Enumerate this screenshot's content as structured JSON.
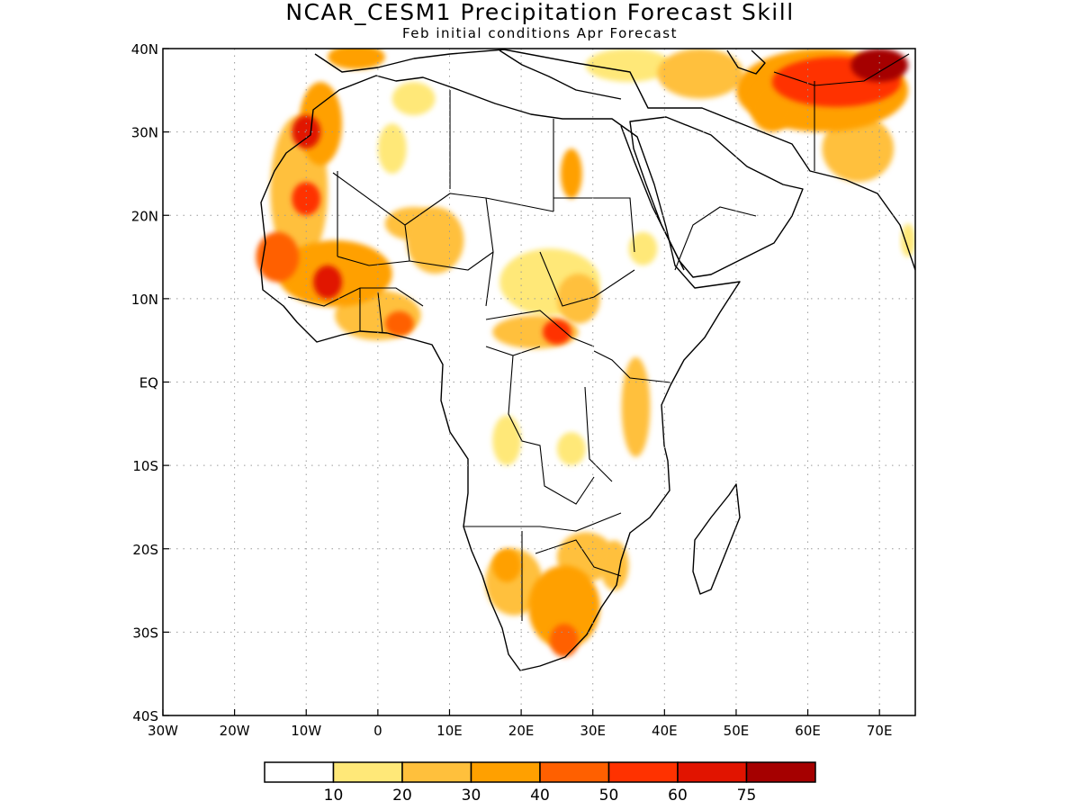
{
  "title": "NCAR_CESM1 Precipitation Forecast Skill",
  "subtitle": "Feb initial conditions  Apr Forecast",
  "map": {
    "lon_range": [
      -30,
      75
    ],
    "lat_range": [
      -40,
      40
    ],
    "lon_ticks": [
      {
        "value": -30,
        "label": "30W"
      },
      {
        "value": -20,
        "label": "20W"
      },
      {
        "value": -10,
        "label": "10W"
      },
      {
        "value": 0,
        "label": "0"
      },
      {
        "value": 10,
        "label": "10E"
      },
      {
        "value": 20,
        "label": "20E"
      },
      {
        "value": 30,
        "label": "30E"
      },
      {
        "value": 40,
        "label": "40E"
      },
      {
        "value": 50,
        "label": "50E"
      },
      {
        "value": 60,
        "label": "60E"
      },
      {
        "value": 70,
        "label": "70E"
      }
    ],
    "lat_ticks": [
      {
        "value": 40,
        "label": "40N"
      },
      {
        "value": 30,
        "label": "30N"
      },
      {
        "value": 20,
        "label": "20N"
      },
      {
        "value": 10,
        "label": "10N"
      },
      {
        "value": 0,
        "label": "EQ"
      },
      {
        "value": -10,
        "label": "10S"
      },
      {
        "value": -20,
        "label": "20S"
      },
      {
        "value": -30,
        "label": "30S"
      },
      {
        "value": -40,
        "label": "40S"
      }
    ],
    "grid": true,
    "skill_regions": [
      {
        "lon": -11,
        "lat": 23,
        "rx": 4,
        "ry": 9,
        "level": 2
      },
      {
        "lon": -8,
        "lat": 31,
        "rx": 3,
        "ry": 5,
        "level": 3
      },
      {
        "lon": -10,
        "lat": 22,
        "rx": 2,
        "ry": 2,
        "level": 5
      },
      {
        "lon": -10,
        "lat": 30,
        "rx": 2,
        "ry": 2,
        "level": 6
      },
      {
        "lon": -6,
        "lat": 13,
        "rx": 8,
        "ry": 4,
        "level": 3
      },
      {
        "lon": -7,
        "lat": 12,
        "rx": 2,
        "ry": 2,
        "level": 6
      },
      {
        "lon": -14,
        "lat": 15,
        "rx": 3,
        "ry": 3,
        "level": 4
      },
      {
        "lon": 0,
        "lat": 8,
        "rx": 6,
        "ry": 3,
        "level": 2
      },
      {
        "lon": 3,
        "lat": 7,
        "rx": 2,
        "ry": 1.5,
        "level": 4
      },
      {
        "lon": 5,
        "lat": 19,
        "rx": 4,
        "ry": 2,
        "level": 2
      },
      {
        "lon": 8,
        "lat": 17,
        "rx": 4,
        "ry": 4,
        "level": 2
      },
      {
        "lon": 2,
        "lat": 28,
        "rx": 2,
        "ry": 3,
        "level": 1
      },
      {
        "lon": 5,
        "lat": 34,
        "rx": 3,
        "ry": 2,
        "level": 1
      },
      {
        "lon": -3,
        "lat": 39,
        "rx": 4,
        "ry": 1.5,
        "level": 3
      },
      {
        "lon": 27,
        "lat": 25,
        "rx": 1.5,
        "ry": 3,
        "level": 3
      },
      {
        "lon": 24,
        "lat": 12,
        "rx": 7,
        "ry": 4,
        "level": 1
      },
      {
        "lon": 28,
        "lat": 10,
        "rx": 3,
        "ry": 3,
        "level": 2
      },
      {
        "lon": 22,
        "lat": 6,
        "rx": 6,
        "ry": 2,
        "level": 2
      },
      {
        "lon": 25,
        "lat": 6,
        "rx": 2,
        "ry": 1.5,
        "level": 5
      },
      {
        "lon": 37,
        "lat": 16,
        "rx": 2,
        "ry": 2,
        "level": 1
      },
      {
        "lon": 36,
        "lat": -3,
        "rx": 2,
        "ry": 6,
        "level": 2
      },
      {
        "lon": 18,
        "lat": -7,
        "rx": 2,
        "ry": 3,
        "level": 1
      },
      {
        "lon": 27,
        "lat": -8,
        "rx": 2,
        "ry": 2,
        "level": 1
      },
      {
        "lon": 19,
        "lat": -24,
        "rx": 4,
        "ry": 4,
        "level": 2
      },
      {
        "lon": 26,
        "lat": -27,
        "rx": 5,
        "ry": 5,
        "level": 3
      },
      {
        "lon": 26,
        "lat": -31,
        "rx": 2,
        "ry": 2,
        "level": 4
      },
      {
        "lon": 29,
        "lat": -21,
        "rx": 4,
        "ry": 3,
        "level": 2
      },
      {
        "lon": 33,
        "lat": -22,
        "rx": 2,
        "ry": 3,
        "level": 2
      },
      {
        "lon": 18,
        "lat": -22,
        "rx": 2,
        "ry": 2,
        "level": 3
      },
      {
        "lon": 62,
        "lat": 35,
        "rx": 12,
        "ry": 5,
        "level": 3
      },
      {
        "lon": 64,
        "lat": 36,
        "rx": 9,
        "ry": 3,
        "level": 5
      },
      {
        "lon": 70,
        "lat": 38,
        "rx": 4,
        "ry": 2,
        "level": 7
      },
      {
        "lon": 45,
        "lat": 37,
        "rx": 6,
        "ry": 3,
        "level": 2
      },
      {
        "lon": 55,
        "lat": 33,
        "rx": 3,
        "ry": 3,
        "level": 3
      },
      {
        "lon": 67,
        "lat": 28,
        "rx": 5,
        "ry": 4,
        "level": 2
      },
      {
        "lon": 74,
        "lat": 17,
        "rx": 1,
        "ry": 2,
        "level": 1
      },
      {
        "lon": 35,
        "lat": 38,
        "rx": 6,
        "ry": 2,
        "level": 1
      }
    ]
  },
  "colorbar": {
    "colors": [
      "#ffffff",
      "#ffe878",
      "#ffc03c",
      "#ffa000",
      "#ff6000",
      "#ff3200",
      "#e11400",
      "#a50000"
    ],
    "labels": [
      "10",
      "20",
      "30",
      "40",
      "50",
      "60",
      "75"
    ]
  }
}
